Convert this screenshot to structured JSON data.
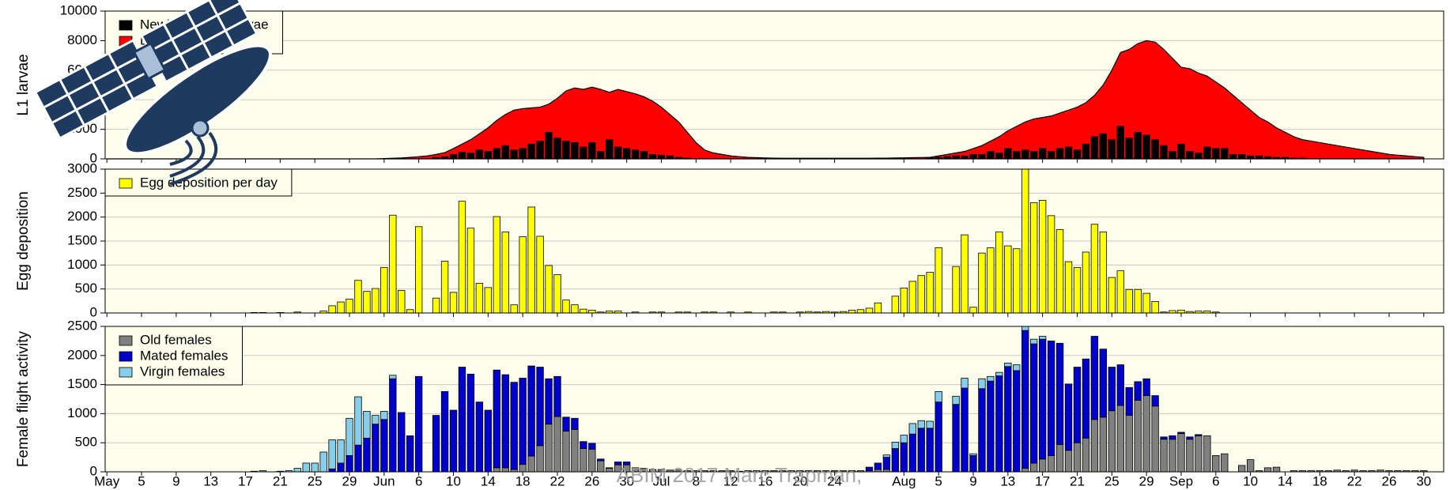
{
  "chart_data": [
    {
      "type": "combo",
      "ylabel": "L1 larvae",
      "ylim": [
        0,
        10000
      ],
      "yticks": [
        0,
        2000,
        4000,
        6000,
        8000,
        10000
      ],
      "grid": true,
      "legend": "upper left",
      "series": [
        {
          "name": "Newly hatched larvae",
          "type": "bar",
          "color": "#000000",
          "values": [
            0,
            0,
            0,
            0,
            0,
            0,
            0,
            0,
            0,
            0,
            0,
            0,
            0,
            0,
            0,
            0,
            0,
            0,
            0,
            0,
            0,
            0,
            0,
            0,
            0,
            0,
            0,
            0,
            0,
            0,
            0,
            0,
            0,
            0,
            0,
            0,
            0,
            0,
            100,
            150,
            300,
            450,
            400,
            600,
            500,
            700,
            900,
            600,
            700,
            1000,
            1200,
            1800,
            1400,
            1200,
            1100,
            800,
            1100,
            500,
            1300,
            800,
            700,
            600,
            500,
            300,
            250,
            200,
            100,
            50,
            0,
            0,
            0,
            0,
            0,
            0,
            0,
            0,
            0,
            0,
            0,
            0,
            0,
            0,
            0,
            0,
            0,
            0,
            0,
            0,
            0,
            0,
            0,
            0,
            0,
            0,
            0,
            100,
            100,
            150,
            200,
            200,
            300,
            300,
            500,
            400,
            700,
            500,
            600,
            500,
            700,
            500,
            700,
            800,
            600,
            1000,
            1500,
            1700,
            1300,
            2200,
            1400,
            1800,
            1600,
            1300,
            900,
            500,
            1000,
            500,
            400,
            800,
            700,
            700,
            300,
            300,
            200,
            200,
            150,
            100,
            100,
            50,
            50,
            0,
            0,
            0,
            0,
            0,
            0,
            0,
            0,
            0,
            0,
            0,
            0,
            0,
            0
          ]
        },
        {
          "name": "L1 larvae total",
          "type": "area",
          "color": "#ff0000",
          "values": [
            0,
            0,
            0,
            0,
            0,
            0,
            0,
            0,
            0,
            0,
            0,
            0,
            0,
            0,
            0,
            0,
            0,
            0,
            0,
            0,
            0,
            0,
            0,
            0,
            0,
            0,
            0,
            0,
            0,
            0,
            0,
            0,
            20,
            40,
            60,
            100,
            150,
            200,
            300,
            420,
            700,
            1000,
            1300,
            1700,
            2100,
            2600,
            3000,
            3300,
            3400,
            3450,
            3500,
            3700,
            4100,
            4600,
            4800,
            4700,
            4850,
            4700,
            4500,
            4700,
            4550,
            4400,
            4200,
            3900,
            3500,
            3000,
            2500,
            1800,
            1100,
            600,
            400,
            300,
            200,
            150,
            100,
            80,
            60,
            50,
            40,
            40,
            40,
            40,
            40,
            40,
            40,
            40,
            40,
            40,
            40,
            50,
            50,
            60,
            70,
            80,
            90,
            100,
            200,
            300,
            400,
            500,
            700,
            900,
            1200,
            1500,
            1900,
            2200,
            2500,
            2700,
            2800,
            2900,
            3100,
            3300,
            3500,
            3800,
            4300,
            5000,
            6000,
            7200,
            7400,
            7800,
            8000,
            7900,
            7400,
            6800,
            6200,
            6100,
            5800,
            5600,
            5200,
            4800,
            4300,
            3800,
            3300,
            2800,
            2500,
            2100,
            1800,
            1500,
            1300,
            1200,
            1100,
            1000,
            900,
            800,
            700,
            600,
            500,
            400,
            300,
            250,
            200,
            150,
            100
          ]
        }
      ]
    },
    {
      "type": "bar",
      "ylabel": "Egg deposition",
      "ylim": [
        0,
        3000
      ],
      "yticks": [
        0,
        500,
        1000,
        1500,
        2000,
        2500,
        3000
      ],
      "grid": true,
      "legend": "upper left",
      "series": [
        {
          "name": "Egg deposition per day",
          "color": "#ffff00",
          "values": [
            0,
            0,
            0,
            0,
            0,
            0,
            0,
            0,
            0,
            0,
            0,
            0,
            0,
            0,
            0,
            0,
            0,
            10,
            10,
            0,
            10,
            0,
            20,
            0,
            0,
            40,
            150,
            230,
            290,
            680,
            450,
            510,
            950,
            2040,
            470,
            70,
            1800,
            0,
            310,
            1080,
            430,
            2330,
            1770,
            620,
            530,
            2010,
            1690,
            170,
            1590,
            2210,
            1600,
            990,
            800,
            270,
            170,
            80,
            60,
            20,
            40,
            40,
            0,
            20,
            0,
            20,
            20,
            0,
            20,
            20,
            0,
            20,
            20,
            0,
            20,
            0,
            20,
            0,
            0,
            20,
            20,
            0,
            20,
            30,
            20,
            30,
            20,
            30,
            60,
            70,
            100,
            210,
            0,
            350,
            520,
            660,
            780,
            850,
            1360,
            0,
            970,
            1630,
            120,
            1250,
            1360,
            1690,
            1400,
            1340,
            3000,
            2300,
            2350,
            2030,
            1740,
            1070,
            950,
            1270,
            1850,
            1690,
            740,
            880,
            490,
            490,
            410,
            240,
            20,
            50,
            60,
            30,
            40,
            40,
            20,
            0,
            0,
            0,
            0,
            0,
            0,
            0,
            0,
            0,
            0,
            0,
            0,
            0,
            0,
            0,
            0,
            0,
            0,
            0,
            0,
            0,
            0,
            0,
            0
          ]
        }
      ]
    },
    {
      "type": "stacked-bar",
      "ylabel": "Female flight activity",
      "ylim": [
        0,
        2500
      ],
      "yticks": [
        0,
        500,
        1000,
        1500,
        2000,
        2500
      ],
      "grid": true,
      "legend": "upper left",
      "categories": [
        "May",
        null,
        null,
        null,
        "5",
        null,
        null,
        null,
        "9",
        null,
        null,
        null,
        "13",
        null,
        null,
        null,
        "17",
        null,
        null,
        null,
        "21",
        null,
        null,
        null,
        "25",
        null,
        null,
        null,
        "29",
        null,
        null,
        null,
        "Jun",
        null,
        null,
        null,
        "6",
        null,
        null,
        null,
        "10",
        null,
        null,
        null,
        "14",
        null,
        null,
        null,
        "18",
        null,
        null,
        null,
        "22",
        null,
        null,
        null,
        "26",
        null,
        null,
        null,
        "30",
        null,
        null,
        null,
        "Jul",
        null,
        null,
        null,
        "8",
        null,
        null,
        null,
        "12",
        null,
        null,
        null,
        "16",
        null,
        null,
        null,
        "20",
        null,
        null,
        null,
        "24",
        null,
        null,
        null,
        null,
        null,
        null,
        null,
        "Aug",
        null,
        null,
        null,
        "5",
        null,
        null,
        null,
        "9",
        null,
        null,
        null,
        "13",
        null,
        null,
        null,
        "17",
        null,
        null,
        null,
        "21",
        null,
        null,
        null,
        "25",
        null,
        null,
        null,
        "29",
        null,
        null,
        null,
        "Sep",
        null,
        null,
        null,
        "6",
        null,
        null,
        null,
        "10",
        null,
        null,
        null,
        "14",
        null,
        null,
        null,
        "18",
        null,
        null,
        null,
        "22",
        null,
        null,
        null,
        "26",
        null,
        null,
        null,
        "30"
      ],
      "series": [
        {
          "name": "Old females",
          "color": "#808080",
          "values": [
            0,
            0,
            0,
            0,
            0,
            0,
            0,
            0,
            0,
            0,
            0,
            0,
            0,
            0,
            0,
            0,
            0,
            0,
            0,
            0,
            0,
            0,
            0,
            0,
            0,
            0,
            0,
            0,
            0,
            0,
            0,
            0,
            0,
            0,
            0,
            0,
            0,
            0,
            0,
            0,
            0,
            0,
            0,
            0,
            0,
            70,
            70,
            40,
            130,
            270,
            450,
            820,
            950,
            700,
            730,
            400,
            390,
            190,
            60,
            120,
            120,
            60,
            60,
            40,
            40,
            30,
            30,
            20,
            20,
            20,
            20,
            20,
            20,
            10,
            20,
            20,
            20,
            20,
            20,
            20,
            20,
            20,
            20,
            20,
            20,
            20,
            20,
            20,
            20,
            40,
            40,
            0,
            0,
            0,
            0,
            0,
            0,
            0,
            0,
            0,
            0,
            0,
            0,
            0,
            0,
            0,
            60,
            150,
            220,
            280,
            470,
            370,
            500,
            580,
            900,
            940,
            1050,
            1140,
            970,
            1230,
            1310,
            1130,
            560,
            560,
            660,
            560,
            620,
            620,
            280,
            310,
            0,
            110,
            210,
            20,
            70,
            80,
            0,
            20,
            20,
            20,
            20,
            20,
            30,
            20,
            30,
            20,
            20,
            30,
            20,
            20,
            20,
            20,
            20
          ]
        },
        {
          "name": "Mated females",
          "color": "#0000cc",
          "values": [
            0,
            0,
            0,
            0,
            0,
            0,
            0,
            0,
            0,
            0,
            0,
            0,
            0,
            0,
            0,
            0,
            0,
            0,
            0,
            0,
            0,
            0,
            0,
            0,
            0,
            0,
            50,
            150,
            280,
            460,
            580,
            820,
            900,
            1600,
            1020,
            620,
            1640,
            0,
            970,
            1380,
            1060,
            1800,
            1680,
            1200,
            1060,
            1680,
            1600,
            1500,
            1480,
            1550,
            1350,
            780,
            690,
            240,
            190,
            120,
            100,
            30,
            10,
            50,
            50,
            10,
            0,
            0,
            0,
            0,
            0,
            0,
            0,
            0,
            0,
            0,
            0,
            0,
            0,
            0,
            0,
            0,
            0,
            0,
            0,
            0,
            0,
            0,
            0,
            0,
            0,
            0,
            60,
            110,
            210,
            400,
            500,
            650,
            750,
            750,
            1200,
            0,
            1160,
            1440,
            280,
            1430,
            1560,
            1650,
            1810,
            1740,
            2370,
            2050,
            2060,
            1970,
            1740,
            1140,
            1300,
            1360,
            1430,
            1170,
            750,
            700,
            480,
            320,
            290,
            180,
            40,
            60,
            20,
            40,
            20,
            0,
            0,
            0,
            0,
            0,
            0,
            0,
            0,
            0,
            0,
            0,
            0,
            0,
            0,
            0,
            0,
            0,
            0,
            0,
            0,
            0,
            0,
            0,
            0,
            0,
            0
          ]
        },
        {
          "name": "Virgin females",
          "color": "#87ceeb",
          "values": [
            0,
            0,
            0,
            0,
            0,
            0,
            0,
            0,
            0,
            0,
            0,
            0,
            0,
            0,
            0,
            0,
            0,
            10,
            20,
            0,
            10,
            20,
            60,
            150,
            150,
            340,
            500,
            400,
            640,
            830,
            460,
            150,
            140,
            60,
            0,
            0,
            0,
            0,
            0,
            0,
            0,
            0,
            0,
            0,
            0,
            0,
            0,
            0,
            0,
            0,
            0,
            0,
            0,
            0,
            0,
            0,
            0,
            0,
            0,
            0,
            0,
            0,
            0,
            0,
            0,
            0,
            0,
            0,
            0,
            0,
            0,
            0,
            0,
            0,
            0,
            0,
            0,
            0,
            0,
            0,
            0,
            0,
            0,
            0,
            0,
            0,
            0,
            0,
            0,
            0,
            40,
            110,
            130,
            180,
            130,
            120,
            180,
            0,
            140,
            170,
            30,
            170,
            80,
            60,
            60,
            100,
            70,
            80,
            50,
            0,
            0,
            0,
            0,
            0,
            0,
            0,
            0,
            0,
            0,
            0,
            0,
            0,
            0,
            0,
            0,
            0,
            0,
            0,
            0,
            0,
            0,
            0,
            0,
            0,
            0,
            0,
            0,
            0,
            0,
            0,
            0,
            0,
            0,
            0,
            0,
            0,
            0,
            0,
            0,
            0,
            0,
            0,
            0
          ]
        }
      ]
    }
  ],
  "watermark": "ABIM 2017  Marc Trapman,"
}
